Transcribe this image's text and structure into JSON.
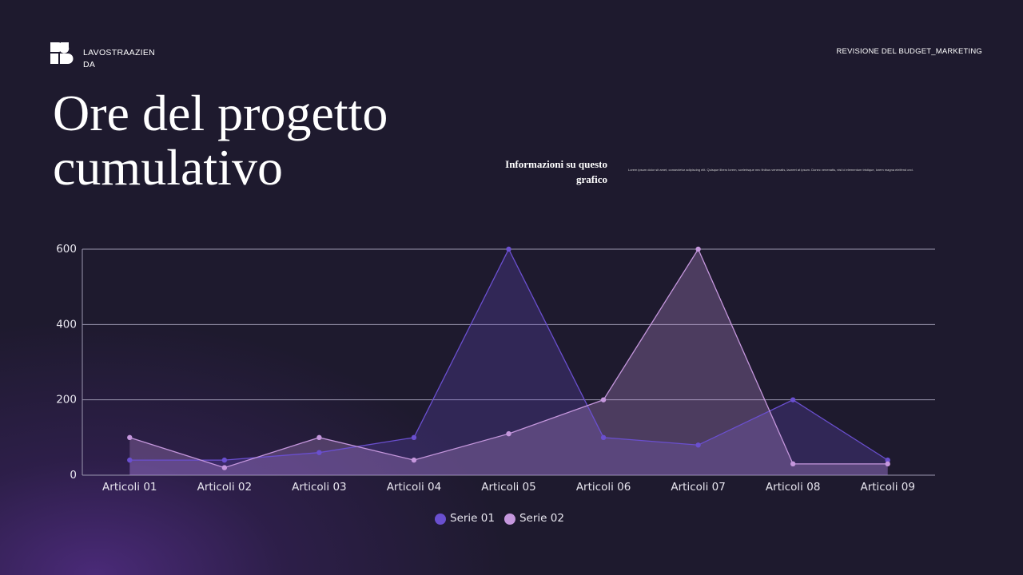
{
  "page": {
    "brand": "LAVOSTRAAZIENDA",
    "deck_title": "REVISIONE DEL BUDGET_MARKETING",
    "info_heading": "Informazioni su questo grafico",
    "info_text": "Lorem ipsum dolor sit amet, consectetur adipiscing elit. Quisque libero lorem, scelerisque nec finibus venenatis, laoreet at ipsum. Donec venenatis, nisl id elementum tristique, lorem magna eleifend orci."
  },
  "chart_data": {
    "type": "area",
    "title": "Ore del progetto cumulativo",
    "categories": [
      "Articoli 01",
      "Articoli 02",
      "Articoli 03",
      "Articoli 04",
      "Articoli 05",
      "Articoli 06",
      "Articoli 07",
      "Articoli 08",
      "Articoli 09"
    ],
    "series": [
      {
        "name": "Serie 01",
        "color": "#6a4fcf",
        "values": [
          40,
          40,
          60,
          100,
          600,
          100,
          80,
          200,
          40
        ]
      },
      {
        "name": "Serie 02",
        "color": "#c597dd",
        "values": [
          100,
          20,
          100,
          40,
          110,
          200,
          600,
          30,
          30
        ]
      }
    ],
    "ylim": [
      0,
      600
    ],
    "yticks": [
      0,
      200,
      400,
      600
    ],
    "grid": true,
    "legend": "bottom"
  }
}
